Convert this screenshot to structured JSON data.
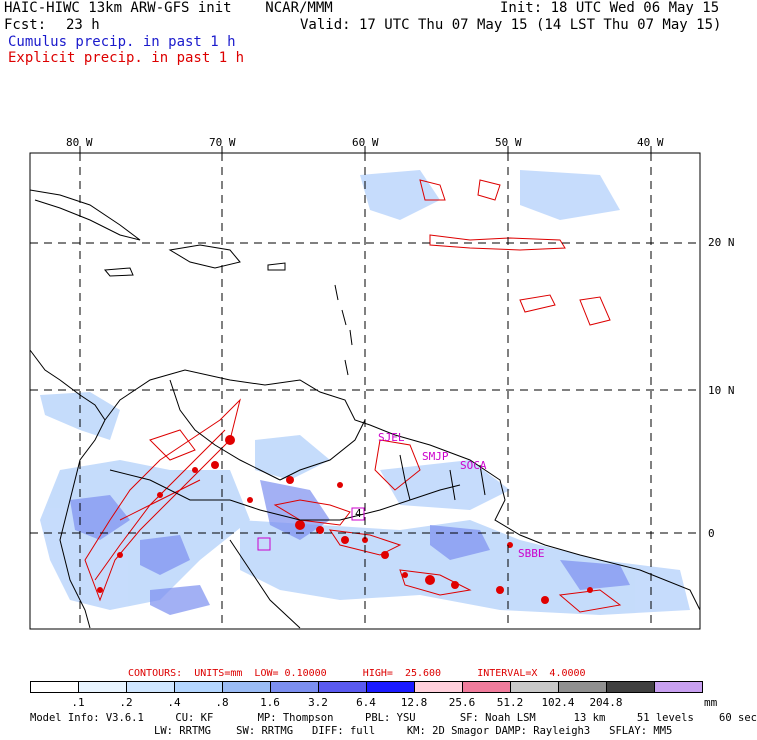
{
  "header": {
    "title": "HAIC-HIWC 13km ARW-GFS init    NCAR/MMM",
    "init": "Init: 18 UTC Wed 06 May 15",
    "fcst_label": "Fcst:",
    "fcst_value": "23 h",
    "valid": "Valid: 17 UTC Thu 07 May 15 (14 LST Thu 07 May 15)",
    "cumulus_legend": "Cumulus precip. in past 1 h",
    "explicit_legend": "Explicit precip. in past 1 h"
  },
  "colors": {
    "cumulus": "#1a1acc",
    "explicit": "#dd0000",
    "marker": "#cc00cc"
  },
  "axes": {
    "lon_labels": [
      "80 W",
      "70 W",
      "60 W",
      "50 W",
      "40 W"
    ],
    "lat_labels": [
      "20 N",
      "10 N",
      "0"
    ]
  },
  "place_labels": [
    "SJEL",
    "SMJP",
    "SOCA",
    "SBBE"
  ],
  "box_labels": [
    "4"
  ],
  "contour_info": {
    "text": "CONTOURS:  UNITS=mm  LOW= 0.10000      HIGH=  25.600      INTERVAL=X  4.0000"
  },
  "colorbar": {
    "unit": "mm",
    "colors": [
      "#ffffff",
      "#e8f4ff",
      "#cfe6ff",
      "#b4d6ff",
      "#9bbcf5",
      "#7c8ff0",
      "#5a5af0",
      "#1a1aff",
      "#ffd0dc",
      "#f07c9c",
      "#c8c8c8",
      "#909090",
      "#404040",
      "#c8a0f0"
    ],
    "ticks": [
      ".1",
      ".2",
      ".4",
      ".8",
      "1.6",
      "3.2",
      "6.4",
      "12.8",
      "25.6",
      "51.2",
      "102.4",
      "204.8"
    ]
  },
  "model_info": {
    "line1": "Model Info: V3.6.1     CU: KF       MP: Thompson     PBL: YSU       SF: Noah LSM      13 km     51 levels    60 sec",
    "line2": "LW: RRTMG    SW: RRTMG   DIFF: full     KM: 2D Smagor DAMP: Rayleigh3   SFLAY: MM5"
  }
}
